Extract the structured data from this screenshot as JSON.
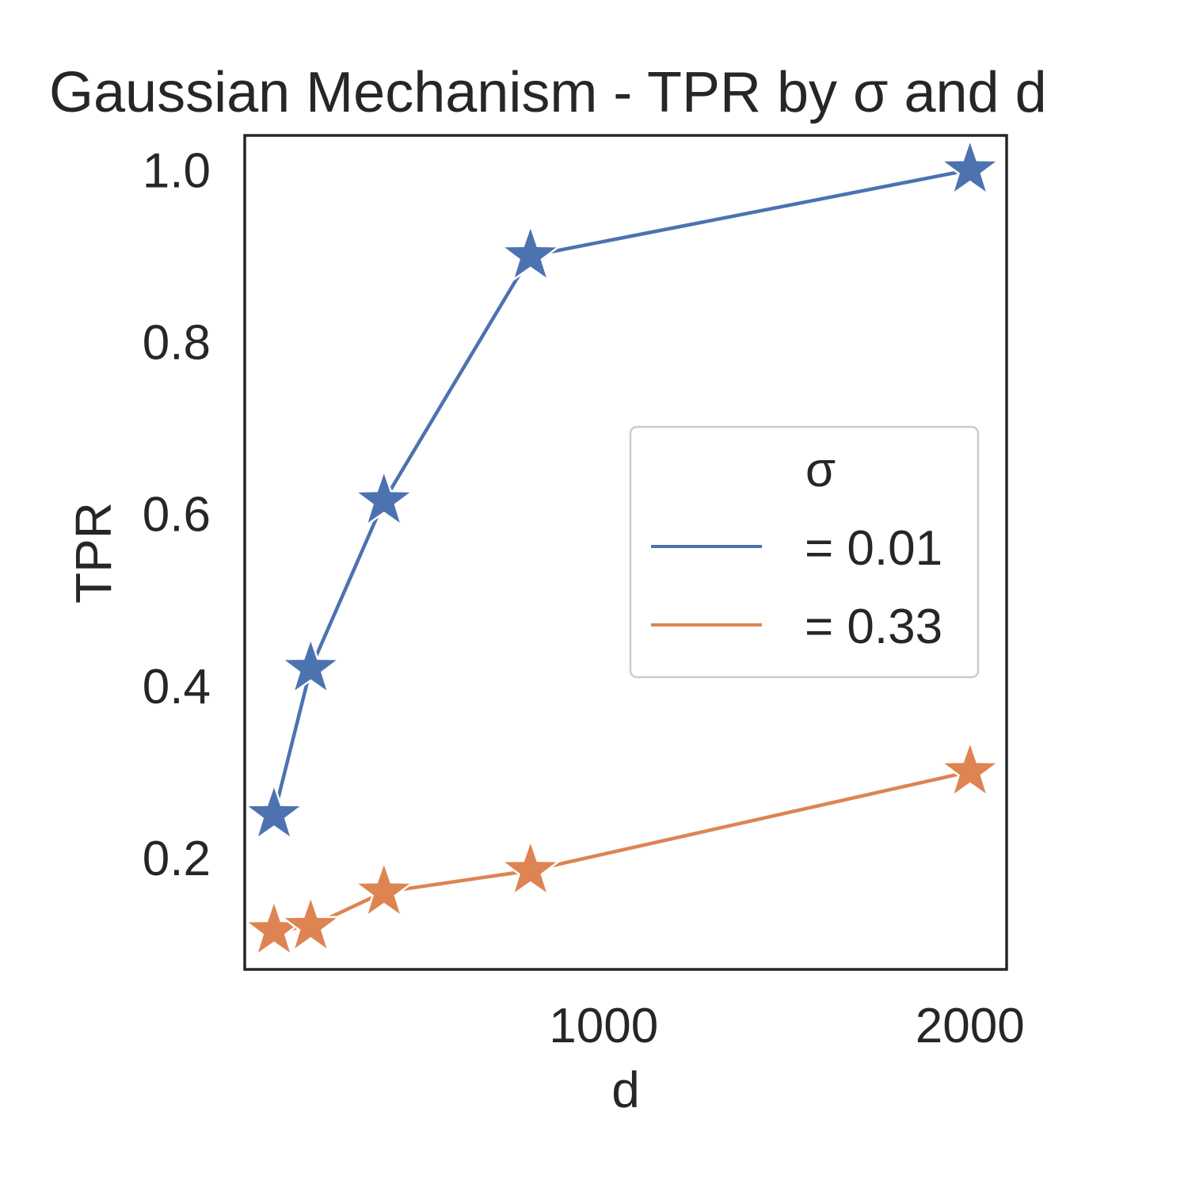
{
  "chart_data": {
    "type": "line",
    "title": "Gaussian Mechanism - TPR by σ and d",
    "xlabel": "d",
    "ylabel": "TPR",
    "x": [
      100,
      200,
      400,
      800,
      2000
    ],
    "xlim": [
      20,
      2100
    ],
    "ylim": [
      0.07,
      1.04
    ],
    "xticks": [
      1000,
      2000
    ],
    "xtick_labels": [
      "1000",
      "2000"
    ],
    "yticks": [
      0.2,
      0.4,
      0.6,
      0.8,
      1.0
    ],
    "ytick_labels": [
      "0.2",
      "0.4",
      "0.6",
      "0.8",
      "1.0"
    ],
    "grid": false,
    "marker": "star",
    "legend": {
      "title": "σ",
      "placement": "center-right"
    },
    "series": [
      {
        "name": "= 0.01",
        "color": "#4c72b0",
        "values": [
          0.25,
          0.42,
          0.615,
          0.9,
          1.0
        ]
      },
      {
        "name": "= 0.33",
        "color": "#dd8452",
        "values": [
          0.115,
          0.12,
          0.16,
          0.185,
          0.3
        ]
      }
    ]
  }
}
